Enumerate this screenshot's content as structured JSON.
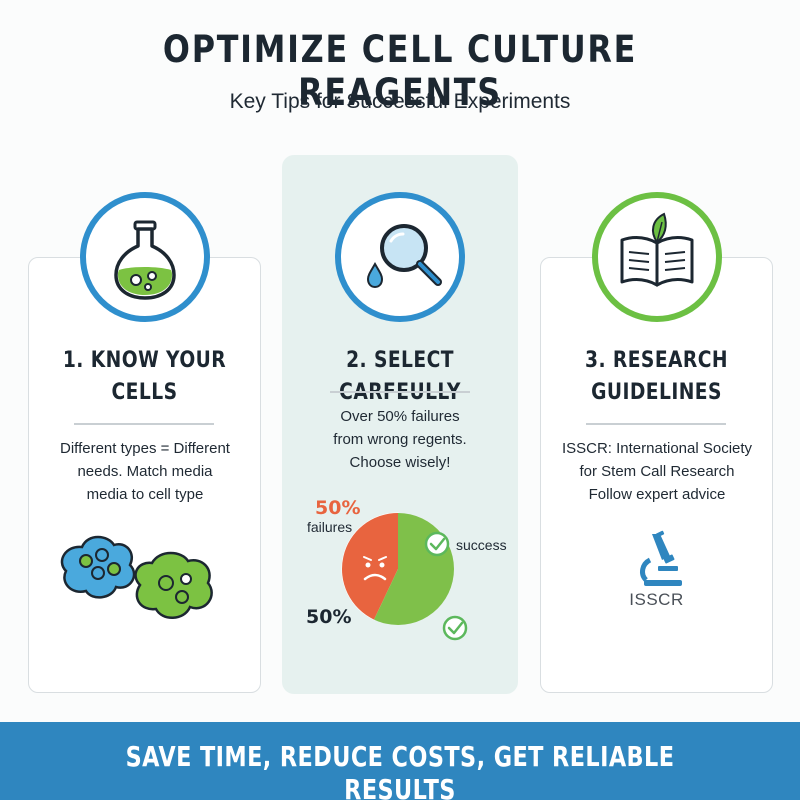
{
  "header": {
    "title": "OPTIMIZE CELL CULTURE REAGENTS",
    "subtitle": "Key Tips for Successful Experiments"
  },
  "tips": [
    {
      "heading_lines": [
        "1. KNOW YOUR",
        "CELLS"
      ],
      "body_lines": [
        "Different types = Different",
        "needs. Match media",
        "media to cell type"
      ],
      "icon": "flask-icon"
    },
    {
      "heading_lines": [
        "2. SELECT CARFEULLY"
      ],
      "body_lines": [
        "Over 50% failures",
        "from wrong regents.",
        "Choose wisely!"
      ],
      "icon": "magnifier-droplet-icon",
      "pie": {
        "top_percent": "50%",
        "failures_label": "failures",
        "bottom_percent": "50%",
        "success_label": "success"
      }
    },
    {
      "heading_lines": [
        "3. RESEARCH",
        "GUIDELINES"
      ],
      "body_lines": [
        "ISSCR: International Society",
        "for Stem Call Research",
        "Follow expert advice"
      ],
      "icon": "open-book-leaf-icon",
      "logo_text": "ISSCR"
    }
  ],
  "footer": {
    "banner": "SAVE TIME, REDUCE COSTS, GET RELIABLE RESULTS"
  },
  "colors": {
    "accent_blue": "#2f8fcd",
    "accent_green": "#6cc043",
    "failure_orange": "#e8643f",
    "success_green": "#7fc04a",
    "banner_blue": "#2f86bf",
    "middle_panel": "#e6f1ef"
  }
}
